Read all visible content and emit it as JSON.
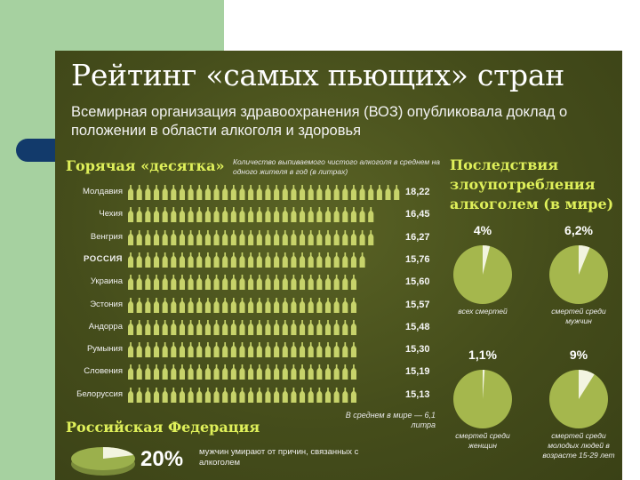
{
  "header": {
    "title": "Рейтинг «самых пьющих» стран",
    "subtitle": "Всемирная организация здравоохранения (ВОЗ) опубликовала доклад о положении в области алкоголя и здоровья"
  },
  "colors": {
    "accent": "#dff05a",
    "bottle": "#c7d36a",
    "pie": "#a5b74d",
    "pie_slice": "#f2f4e0",
    "background": "#474f1c",
    "left_band": "#a6d1a0",
    "tab": "#123a6b"
  },
  "ranking": {
    "heading": "Горячая «десятка»",
    "note": "Количество выпиваемого чистого алкоголя в среднем на одного жителя в год (в литрах)",
    "world_note": "В среднем в мире — 6,1 литра"
  },
  "consequences": {
    "heading": "Последствия злоупотребления алкоголем (в мире)"
  },
  "russia": {
    "heading": "Российская Федерация",
    "value": "20%",
    "text": "мужчин умирают от причин, связанных с алкоголем"
  },
  "chart_data": [
    {
      "type": "bar",
      "title": "Горячая «десятка»",
      "categories": [
        "Молдавия",
        "Чехия",
        "Венгрия",
        "РОССИЯ",
        "Украина",
        "Эстония",
        "Андорра",
        "Румыния",
        "Словения",
        "Белоруссия"
      ],
      "values": [
        18.22,
        16.45,
        16.27,
        15.76,
        15.6,
        15.57,
        15.48,
        15.3,
        15.19,
        15.13
      ],
      "value_labels": [
        "18,22",
        "16,45",
        "16,27",
        "15,76",
        "15,60",
        "15,57",
        "15,48",
        "15,30",
        "15,19",
        "15,13"
      ],
      "highlight": "РОССИЯ"
    },
    {
      "type": "pie",
      "title": "Последствия злоупотребления алкоголем (в мире)",
      "items": [
        {
          "value": 4.0,
          "label": "4%",
          "caption": "всех смертей"
        },
        {
          "value": 6.2,
          "label": "6,2%",
          "caption": "смертей среди мужчин"
        },
        {
          "value": 1.1,
          "label": "1,1%",
          "caption": "смертей среди женщин"
        },
        {
          "value": 9.0,
          "label": "9%",
          "caption": "смертей среди молодых людей в возрасте 15-29 лет"
        }
      ]
    },
    {
      "type": "pie",
      "title": "Российская Федерация",
      "items": [
        {
          "value": 20,
          "label": "20%"
        }
      ]
    }
  ]
}
